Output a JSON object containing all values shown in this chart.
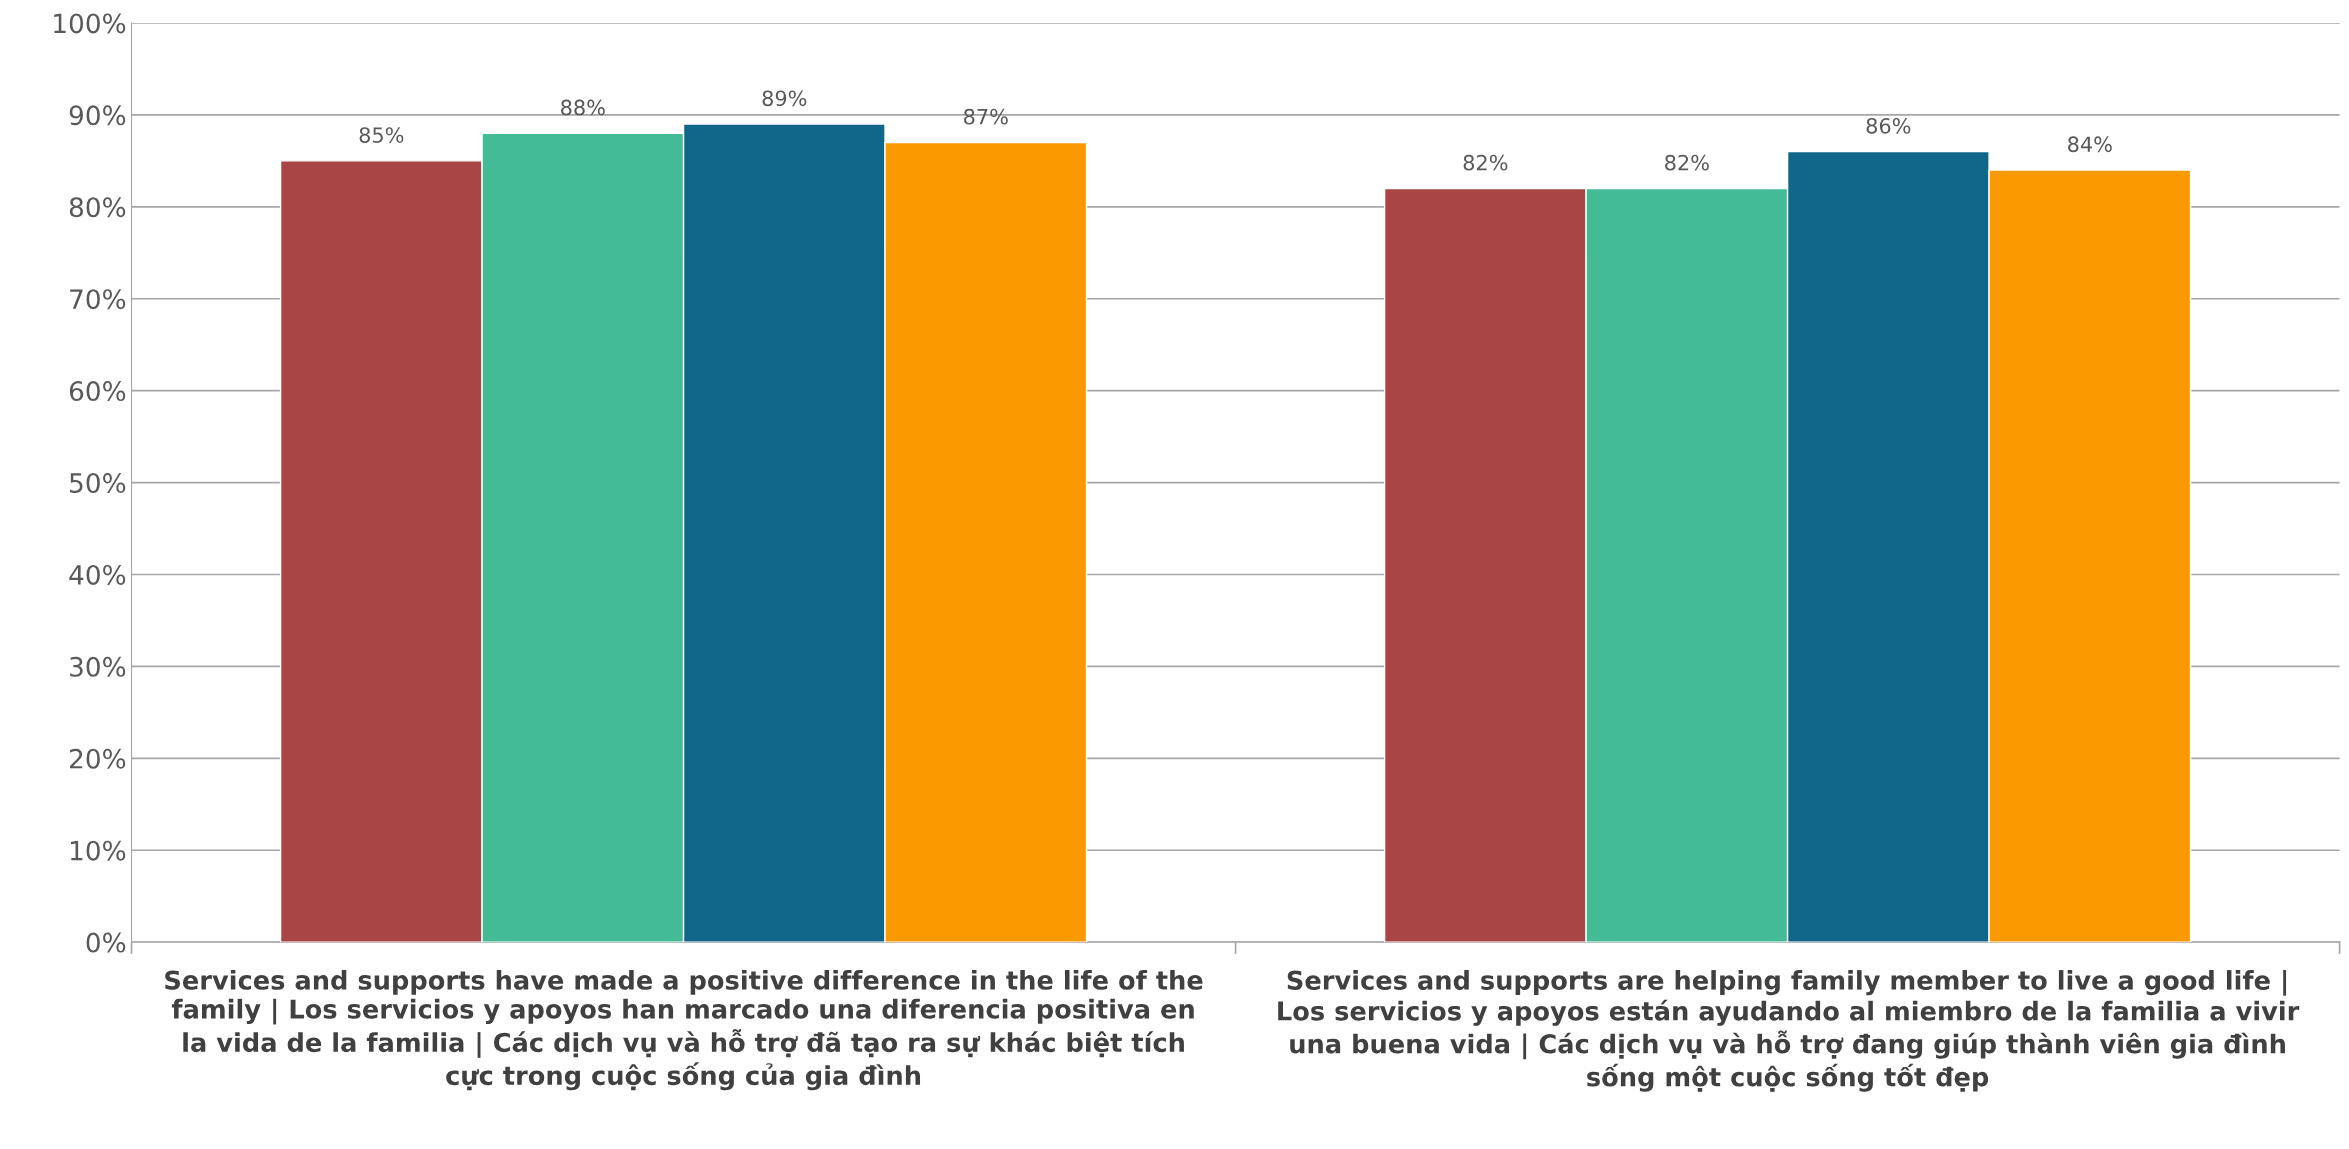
{
  "chart_data": {
    "type": "bar",
    "categories": [
      "Services and supports have made a positive difference in the life of the\nfamily | Los servicios y apoyos han marcado una diferencia positiva en\nla vida de la familia | Các dịch vụ và hỗ trợ đã tạo ra sự khác biệt tích\ncực trong cuộc sống của gia đình",
      "Services and supports are helping family member to live a good life |\nLos servicios y apoyos están ayudando al miembro de la familia a vivir\nuna buena vida | Các dịch vụ và hỗ trợ đang giúp thành viên gia đình\nsống một cuộc sống tốt đẹp"
    ],
    "series": [
      {
        "color": "#a94545",
        "values": [
          85,
          82
        ],
        "value_labels": [
          "85%",
          "82%"
        ]
      },
      {
        "color": "#43bb97",
        "values": [
          88,
          82
        ],
        "value_labels": [
          "88%",
          "82%"
        ]
      },
      {
        "color": "#10678a",
        "values": [
          89,
          86
        ],
        "value_labels": [
          "89%",
          "86%"
        ]
      },
      {
        "color": "#fa9900",
        "values": [
          87,
          84
        ],
        "value_labels": [
          "87%",
          "84%"
        ]
      }
    ],
    "ylim": [
      0,
      100
    ],
    "yticks": [
      {
        "value": 0,
        "label": "0%"
      },
      {
        "value": 10,
        "label": "10%"
      },
      {
        "value": 20,
        "label": "20%"
      },
      {
        "value": 30,
        "label": "30%"
      },
      {
        "value": 40,
        "label": "40%"
      },
      {
        "value": 50,
        "label": "50%"
      },
      {
        "value": 60,
        "label": "60%"
      },
      {
        "value": 70,
        "label": "70%"
      },
      {
        "value": 80,
        "label": "80%"
      },
      {
        "value": 90,
        "label": "90%"
      },
      {
        "value": 100,
        "label": "100%"
      }
    ],
    "grid": "y",
    "legend": false
  }
}
